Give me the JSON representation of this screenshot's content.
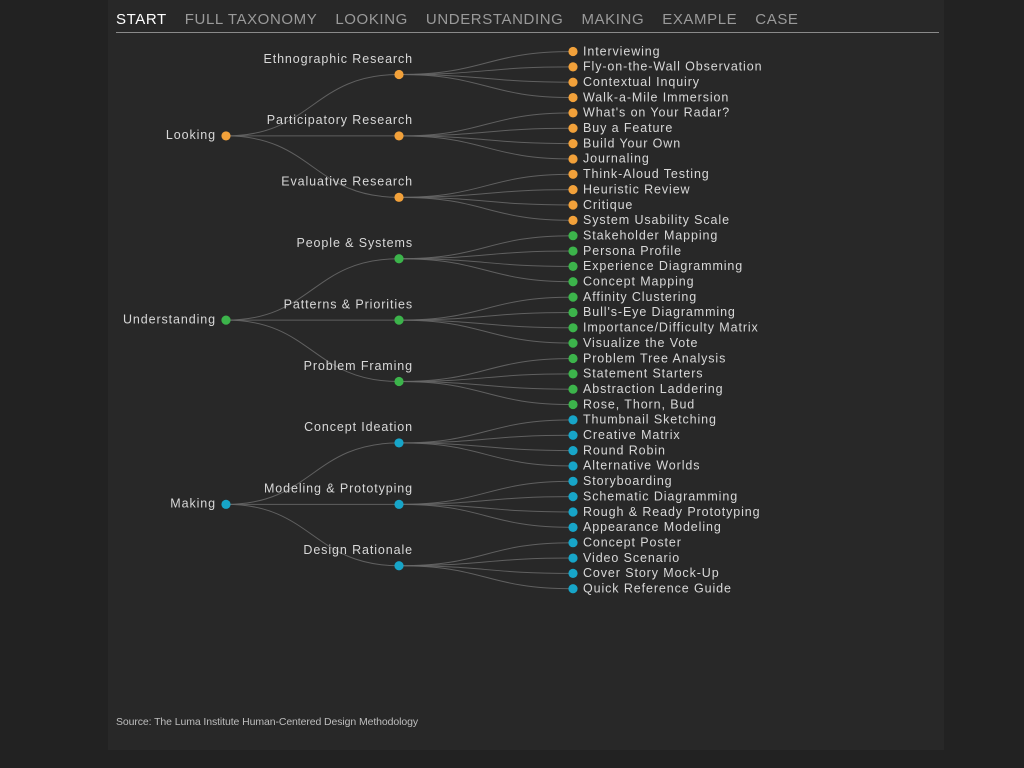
{
  "nav": {
    "tabs": [
      {
        "label": "START",
        "active": true
      },
      {
        "label": "FULL TAXONOMY",
        "active": false
      },
      {
        "label": "LOOKING",
        "active": false
      },
      {
        "label": "UNDERSTANDING",
        "active": false
      },
      {
        "label": "MAKING",
        "active": false
      },
      {
        "label": "EXAMPLE",
        "active": false
      },
      {
        "label": "CASE",
        "active": false
      }
    ]
  },
  "tree": {
    "groups": [
      {
        "label": "Looking",
        "color": "#f2a13a",
        "categories": [
          {
            "label": "Ethnographic Research",
            "methods": [
              "Interviewing",
              "Fly-on-the-Wall Observation",
              "Contextual Inquiry",
              "Walk-a-Mile Immersion"
            ]
          },
          {
            "label": "Participatory Research",
            "methods": [
              "What's on Your Radar?",
              "Buy a Feature",
              "Build Your Own",
              "Journaling"
            ]
          },
          {
            "label": "Evaluative Research",
            "methods": [
              "Think-Aloud Testing",
              "Heuristic Review",
              "Critique",
              "System Usability Scale"
            ]
          }
        ]
      },
      {
        "label": "Understanding",
        "color": "#3cb44b",
        "categories": [
          {
            "label": "People & Systems",
            "methods": [
              "Stakeholder Mapping",
              "Persona Profile",
              "Experience Diagramming",
              "Concept Mapping"
            ]
          },
          {
            "label": "Patterns & Priorities",
            "methods": [
              "Affinity Clustering",
              "Bull's-Eye Diagramming",
              "Importance/Difficulty Matrix",
              "Visualize the Vote"
            ]
          },
          {
            "label": "Problem Framing",
            "methods": [
              "Problem Tree Analysis",
              "Statement Starters",
              "Abstraction Laddering",
              "Rose, Thorn, Bud"
            ]
          }
        ]
      },
      {
        "label": "Making",
        "color": "#17a5c8",
        "categories": [
          {
            "label": "Concept Ideation",
            "methods": [
              "Thumbnail Sketching",
              "Creative Matrix",
              "Round Robin",
              "Alternative Worlds"
            ]
          },
          {
            "label": "Modeling & Prototyping",
            "methods": [
              "Storyboarding",
              "Schematic Diagramming",
              "Rough & Ready Prototyping",
              "Appearance Modeling"
            ]
          },
          {
            "label": "Design Rationale",
            "methods": [
              "Concept Poster",
              "Video Scenario",
              "Cover Story Mock-Up",
              "Quick Reference Guide"
            ]
          }
        ]
      }
    ]
  },
  "footer": {
    "source": "Source: The Luma Institute Human-Centered Design Methodology"
  }
}
